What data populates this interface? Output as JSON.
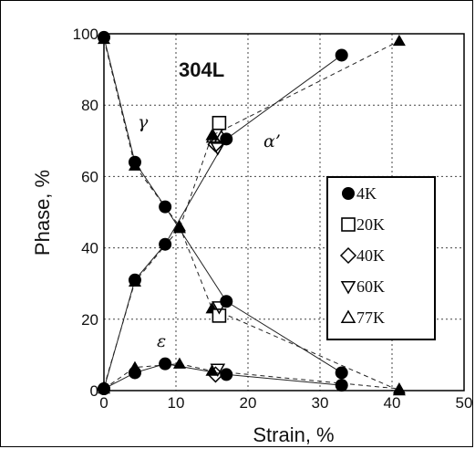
{
  "chart_data": {
    "type": "line",
    "title": "304L",
    "xlabel": "Strain, %",
    "ylabel": "Phase, %",
    "xlim": [
      0,
      50
    ],
    "ylim": [
      0,
      100
    ],
    "x_ticks": [
      "0",
      "10",
      "20",
      "30",
      "40",
      "50"
    ],
    "y_ticks": [
      "0",
      "20",
      "40",
      "60",
      "80",
      "100"
    ],
    "grid": "dotted",
    "legend_position": "right",
    "phase_labels": {
      "gamma": "γ",
      "alpha": "α’",
      "epsilon": "ε"
    },
    "legend": [
      {
        "marker": "filled-circle",
        "label": "●:   4K"
      },
      {
        "marker": "open-square",
        "label": "□: 20K"
      },
      {
        "marker": "open-diamond",
        "label": "◇: 40K"
      },
      {
        "marker": "open-triangle-down",
        "label": "▽: 60K"
      },
      {
        "marker": "open-triangle-up",
        "label": "△: 77K"
      }
    ],
    "series": [
      {
        "marker": "filled-circle",
        "line": "solid",
        "points": [
          [
            0,
            99
          ],
          [
            4.3,
            64
          ],
          [
            8.5,
            51.5
          ],
          [
            17,
            25
          ],
          [
            33,
            5
          ]
        ]
      },
      {
        "marker": "filled-circle",
        "line": "solid",
        "points": [
          [
            0,
            0.5
          ],
          [
            4.3,
            31
          ],
          [
            8.5,
            41
          ],
          [
            17,
            70.5
          ],
          [
            33,
            94
          ]
        ]
      },
      {
        "marker": "filled-circle",
        "line": "solid",
        "points": [
          [
            0,
            0.5
          ],
          [
            4.3,
            5
          ],
          [
            8.5,
            7.5
          ],
          [
            17,
            4.5
          ],
          [
            33,
            1.5
          ]
        ]
      },
      {
        "marker": "filled-triangle-up",
        "line": "dashed",
        "points": [
          [
            0,
            98.5
          ],
          [
            4.3,
            63
          ],
          [
            10.5,
            46
          ],
          [
            15,
            23
          ],
          [
            41,
            0
          ]
        ]
      },
      {
        "marker": "filled-triangle-up",
        "line": "dashed",
        "points": [
          [
            0,
            1
          ],
          [
            4.3,
            30.5
          ],
          [
            10.5,
            45.5
          ],
          [
            15,
            71.5
          ],
          [
            41,
            98
          ]
        ]
      },
      {
        "marker": "filled-triangle-up",
        "line": "dashed",
        "points": [
          [
            0,
            0.5
          ],
          [
            4.3,
            6.5
          ],
          [
            10.5,
            7.5
          ],
          [
            15,
            5.5
          ],
          [
            41,
            0.5
          ]
        ]
      },
      {
        "marker": "open-square",
        "line": "none",
        "points": [
          [
            16,
            75
          ],
          [
            16,
            21
          ]
        ]
      },
      {
        "marker": "open-diamond",
        "line": "none",
        "points": [
          [
            15.5,
            69
          ],
          [
            15.5,
            4.5
          ]
        ]
      },
      {
        "marker": "open-triangle-down",
        "line": "none",
        "points": [
          [
            15.8,
            68
          ],
          [
            15.8,
            6
          ],
          [
            16,
            23.5
          ]
        ]
      },
      {
        "marker": "open-triangle-up",
        "line": "none",
        "points": [
          [
            15.2,
            71
          ],
          [
            16.3,
            71
          ]
        ]
      }
    ]
  }
}
